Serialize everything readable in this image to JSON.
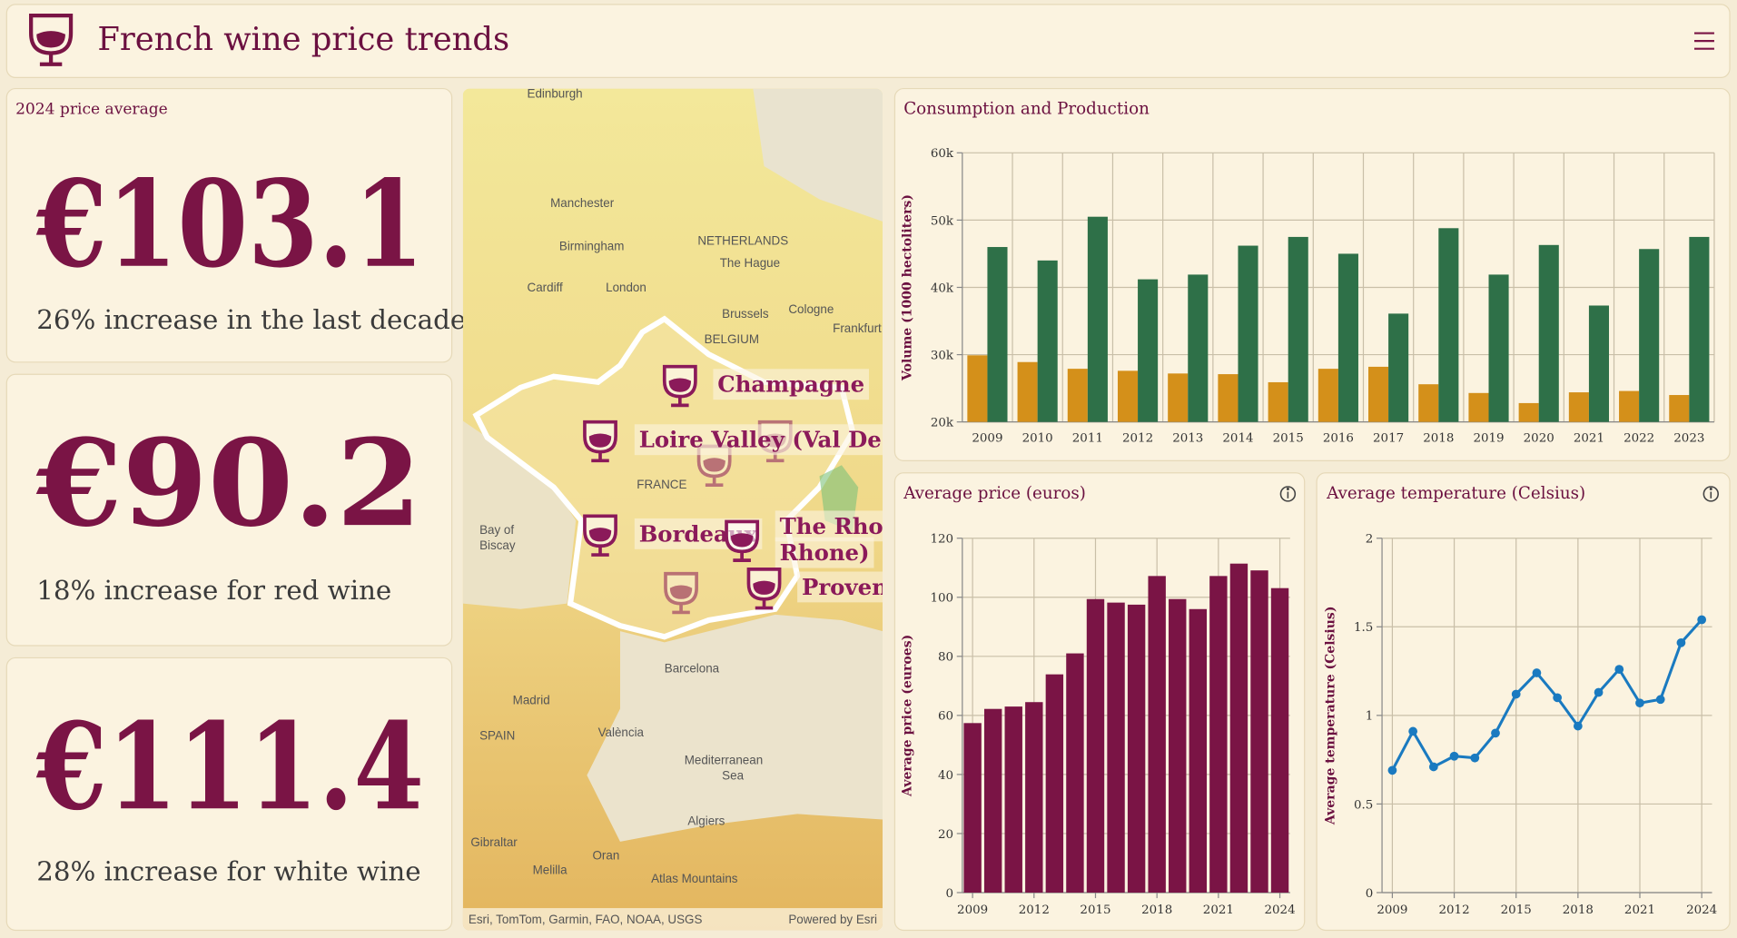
{
  "header": {
    "title": "French wine price trends"
  },
  "kpis": [
    {
      "label": "2024 price average",
      "value": "€103.1",
      "note": "26% increase in the last decade"
    },
    {
      "value": "€90.2",
      "note": "18% increase for red wine"
    },
    {
      "value": "€111.4",
      "note": "28% increase for white wine"
    }
  ],
  "map": {
    "regions": [
      {
        "lines": [
          "Champagne"
        ]
      },
      {
        "lines": [
          "Loire Valley (Val De Loire)"
        ]
      },
      {
        "lines": [
          "Bordeaux"
        ]
      },
      {
        "lines": [
          "The Rhone Valley (Vallée du",
          "Rhone)"
        ]
      },
      {
        "lines": [
          "Provence"
        ]
      }
    ],
    "places": [
      "Edinburgh",
      "Manchester",
      "Birmingham",
      "London",
      "Cardiff",
      "NETHERLANDS",
      "The Hague",
      "Brussels",
      "Cologne",
      "BELGIUM",
      "Frankfurt am Main",
      "FRANCE",
      "Bay of",
      "Biscay",
      "Barcelona",
      "Madrid",
      "SPAIN",
      "València",
      "Mediterranean",
      "Sea",
      "Algiers",
      "Oran",
      "Melilla",
      "Gibraltar",
      "Atlas Mountains"
    ],
    "attribution": "Esri, TomTom, Garmin, FAO, NOAA, USGS",
    "powered_by": "Powered by Esri"
  },
  "chart_data": [
    {
      "type": "bar",
      "title": "Consumption and Production",
      "y_label": "Volume (1000 hectoliters)",
      "categories": [
        "2009",
        "2010",
        "2011",
        "2012",
        "2013",
        "2014",
        "2015",
        "2016",
        "2017",
        "2018",
        "2019",
        "2020",
        "2021",
        "2022",
        "2023"
      ],
      "series": [
        {
          "color": "#d4901a",
          "values": [
            29900,
            28900,
            27900,
            27600,
            27200,
            27100,
            25900,
            27900,
            28200,
            25600,
            24300,
            22800,
            24400,
            24600,
            24000
          ]
        },
        {
          "color": "#2e7048",
          "values": [
            46000,
            44000,
            50500,
            41200,
            41900,
            46200,
            47500,
            45000,
            36100,
            48800,
            41900,
            46300,
            37300,
            45700,
            47500
          ]
        }
      ],
      "ylim": [
        20000,
        60000
      ],
      "yticks": [
        {
          "value": 20000,
          "label": "20k"
        },
        {
          "value": 30000,
          "label": "30k"
        },
        {
          "value": 40000,
          "label": "40k"
        },
        {
          "value": 50000,
          "label": "50k"
        },
        {
          "value": 60000,
          "label": "60k"
        }
      ],
      "grid": true
    },
    {
      "type": "bar",
      "title": "Average price (euros)",
      "y_label": "Average price (euroes)",
      "x": [
        2009,
        2010,
        2011,
        2012,
        2013,
        2014,
        2015,
        2016,
        2017,
        2018,
        2019,
        2020,
        2021,
        2022,
        2023,
        2024
      ],
      "values": [
        57.4,
        62.2,
        63.0,
        64.5,
        73.9,
        81.0,
        99.4,
        98.2,
        97.5,
        107.2,
        99.4,
        96.0,
        107.2,
        111.4,
        109.1,
        103.1
      ],
      "color": "#7a1445",
      "xlim": [
        2008.5,
        2024.5
      ],
      "xticks": [
        2009,
        2012,
        2015,
        2018,
        2021,
        2024
      ],
      "ylim": [
        0,
        120
      ],
      "yticks": [
        0,
        20,
        40,
        60,
        80,
        100,
        120
      ],
      "grid": true
    },
    {
      "type": "line",
      "title": "Average temperature (Celsius)",
      "y_label": "Average temperature (Celsius)",
      "x": [
        2009,
        2010,
        2011,
        2012,
        2013,
        2014,
        2015,
        2016,
        2017,
        2018,
        2019,
        2020,
        2021,
        2022,
        2023,
        2024
      ],
      "values": [
        0.69,
        0.91,
        0.71,
        0.77,
        0.76,
        0.9,
        1.12,
        1.24,
        1.1,
        0.94,
        1.13,
        1.26,
        1.07,
        1.09,
        1.41,
        1.54
      ],
      "color": "#1a7ac0",
      "xlim": [
        2008.5,
        2024.5
      ],
      "xticks": [
        2009,
        2012,
        2015,
        2018,
        2021,
        2024
      ],
      "ylim": [
        0,
        2
      ],
      "yticks": [
        0,
        0.5,
        1,
        1.5,
        2
      ],
      "grid": true
    }
  ]
}
